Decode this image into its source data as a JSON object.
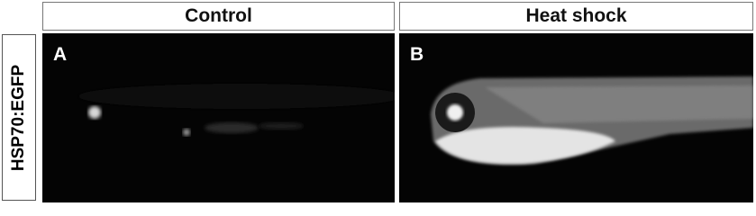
{
  "row_label": "HSP70:EGFP",
  "columns": [
    {
      "header": "Control",
      "panel": "A"
    },
    {
      "header": "Heat shock",
      "panel": "B"
    }
  ]
}
